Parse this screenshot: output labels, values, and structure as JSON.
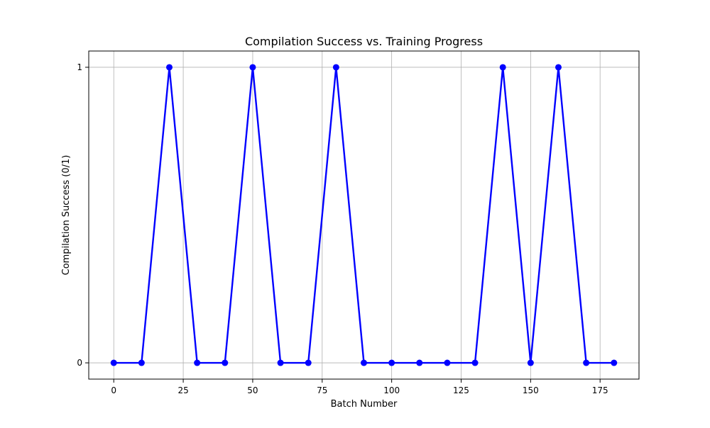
{
  "chart_data": {
    "type": "line",
    "title": "Compilation Success vs. Training Progress",
    "xlabel": "Batch Number",
    "ylabel": "Compilation Success (0/1)",
    "xlim": [
      -9,
      189
    ],
    "ylim": [
      -0.055,
      1.055
    ],
    "x_ticks": [
      0,
      25,
      50,
      75,
      100,
      125,
      150,
      175
    ],
    "x_tick_labels": [
      "0",
      "25",
      "50",
      "75",
      "100",
      "125",
      "150",
      "175"
    ],
    "y_ticks": [
      0,
      1
    ],
    "y_tick_labels": [
      "0",
      "1"
    ],
    "grid": true,
    "legend": "none",
    "series": [
      {
        "color": "#0000ff",
        "marker": "circle",
        "x": [
          0,
          10,
          20,
          30,
          40,
          50,
          60,
          70,
          80,
          90,
          100,
          110,
          120,
          130,
          140,
          150,
          160,
          170,
          180
        ],
        "y": [
          0,
          0,
          1,
          0,
          0,
          1,
          0,
          0,
          1,
          0,
          0,
          0,
          0,
          0,
          1,
          0,
          1,
          0,
          0
        ]
      }
    ]
  },
  "colors": {
    "grid": "#b0b0b0",
    "axis": "#000000",
    "line": "#0000ff"
  }
}
